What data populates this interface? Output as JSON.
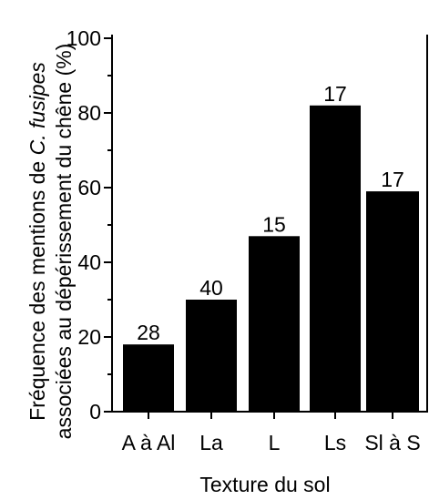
{
  "chart_data": {
    "type": "bar",
    "categories": [
      "A à Al",
      "La",
      "L",
      "Ls",
      "Sl à S"
    ],
    "values": [
      18,
      30,
      47,
      82,
      59
    ],
    "data_labels": [
      "28",
      "40",
      "15",
      "17",
      "17"
    ],
    "xlabel": "Texture du sol",
    "ylabel_parts": {
      "line1_before": "Fréquence des mentions de ",
      "line1_italic": "C. fusipes",
      "line2": "associées au dépérissement du chêne (%)"
    },
    "ylim": [
      0,
      100
    ],
    "yticks": [
      "0",
      "20",
      "40",
      "60",
      "80",
      "100"
    ],
    "ytick_values": [
      0,
      20,
      40,
      60,
      80,
      100
    ],
    "grid": false,
    "bar_color": "#000000"
  }
}
